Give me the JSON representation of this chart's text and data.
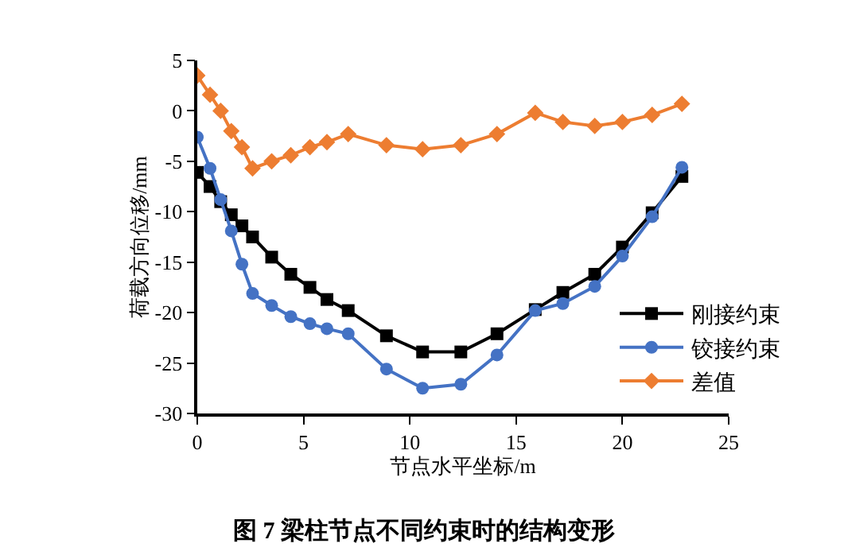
{
  "chart_data": {
    "type": "line",
    "title": "图 7 梁柱节点不同约束时的结构变形",
    "xlabel": "节点水平坐标/m",
    "ylabel": "荷载方向位移/mm",
    "x": [
      0,
      0.6,
      1.1,
      1.6,
      2.1,
      2.6,
      3.5,
      4.4,
      5.3,
      6.1,
      7.1,
      8.9,
      10.6,
      12.4,
      14.1,
      15.9,
      17.2,
      18.7,
      20,
      21.4,
      22.8
    ],
    "series": [
      {
        "name": "刚接约束",
        "color": "#000000",
        "marker": "square",
        "values": [
          -6.1,
          -7.5,
          -9.0,
          -10.3,
          -11.4,
          -12.5,
          -14.5,
          -16.2,
          -17.5,
          -18.7,
          -19.8,
          -22.3,
          -23.9,
          -23.9,
          -22.1,
          -19.7,
          -18.0,
          -16.2,
          -13.5,
          -10.1,
          -6.5
        ]
      },
      {
        "name": "铰接约束",
        "color": "#4472c4",
        "marker": "circle",
        "values": [
          -2.6,
          -5.7,
          -8.8,
          -11.9,
          -15.2,
          -18.1,
          -19.3,
          -20.4,
          -21.1,
          -21.6,
          -22.1,
          -25.6,
          -27.5,
          -27.1,
          -24.2,
          -19.8,
          -19.1,
          -17.4,
          -14.4,
          -10.5,
          -5.6
        ]
      },
      {
        "name": "差值",
        "color": "#ed7d31",
        "marker": "diamond",
        "values": [
          3.5,
          1.6,
          0.0,
          -2.0,
          -3.6,
          -5.7,
          -5.0,
          -4.4,
          -3.6,
          -3.1,
          -2.3,
          -3.4,
          -3.8,
          -3.4,
          -2.3,
          -0.2,
          -1.1,
          -1.5,
          -1.1,
          -0.4,
          0.7
        ]
      }
    ],
    "xlim": [
      0,
      25
    ],
    "xticks": [
      0,
      5,
      10,
      15,
      20,
      25
    ],
    "ylim": [
      -30,
      5
    ],
    "yticks": [
      -30,
      -25,
      -20,
      -15,
      -10,
      -5,
      0,
      5
    ],
    "grid": false,
    "legend": "bottom right",
    "line_style": "solid"
  }
}
